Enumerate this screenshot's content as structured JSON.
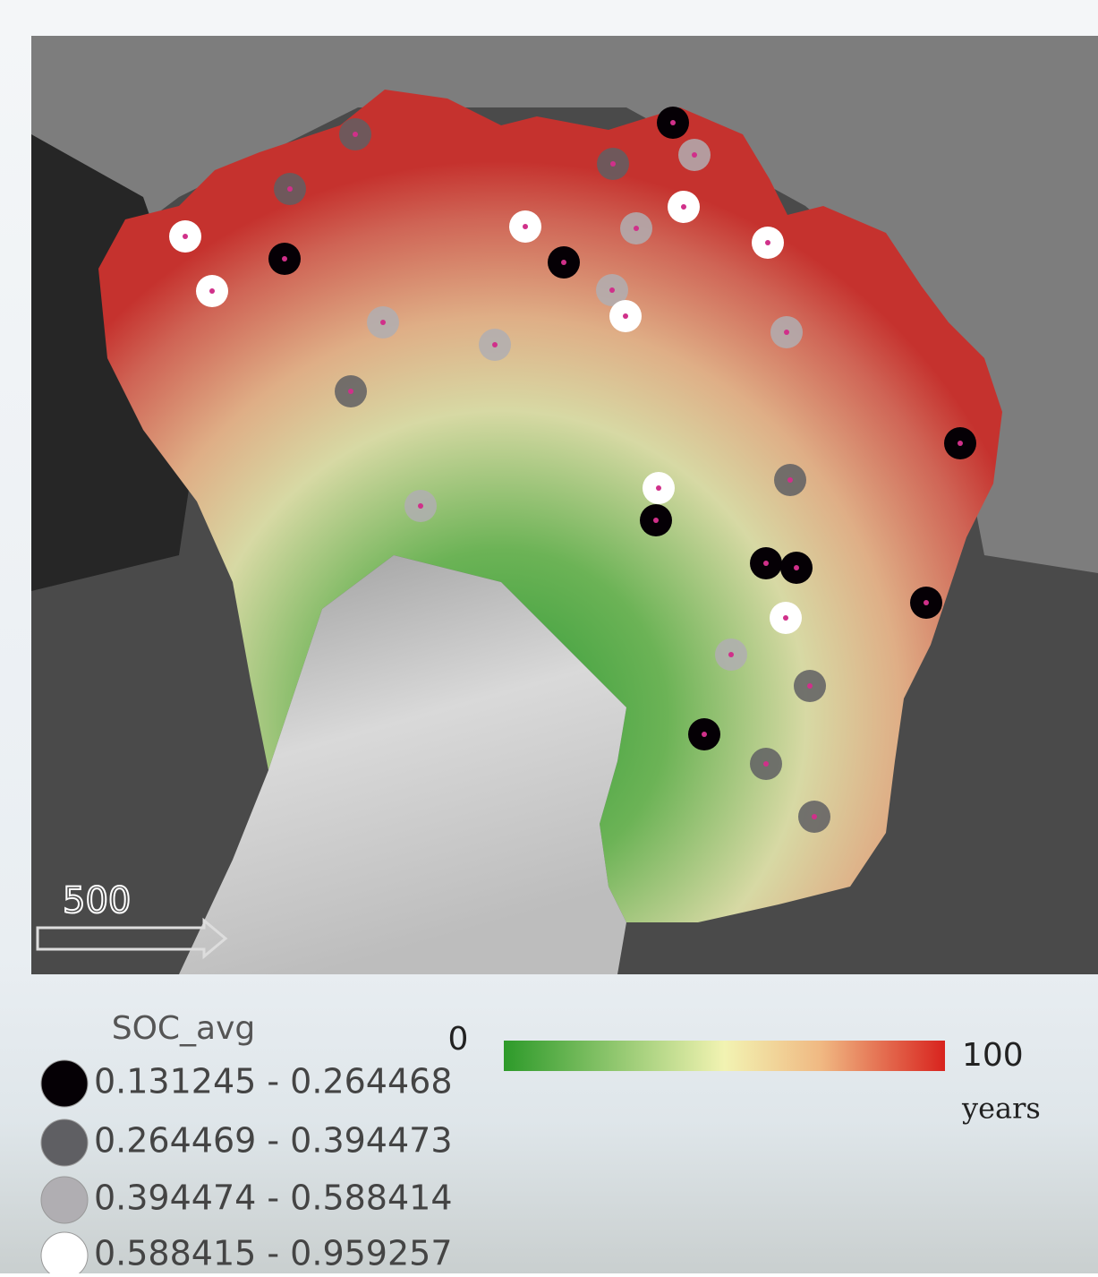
{
  "map": {
    "scale_label": "500",
    "legend": {
      "title": "SOC_avg",
      "classes": [
        {
          "label": "0.131245 - 0.264468",
          "color": "#050005"
        },
        {
          "label": "0.264469 - 0.394473",
          "color": "#5f5f63"
        },
        {
          "label": "0.394474 - 0.588414",
          "color": "#b0aeb2"
        },
        {
          "label": "0.588415 - 0.959257",
          "color": "#ffffff"
        }
      ]
    },
    "colorbar": {
      "min": 0,
      "max": 100,
      "unit": "years"
    }
  }
}
